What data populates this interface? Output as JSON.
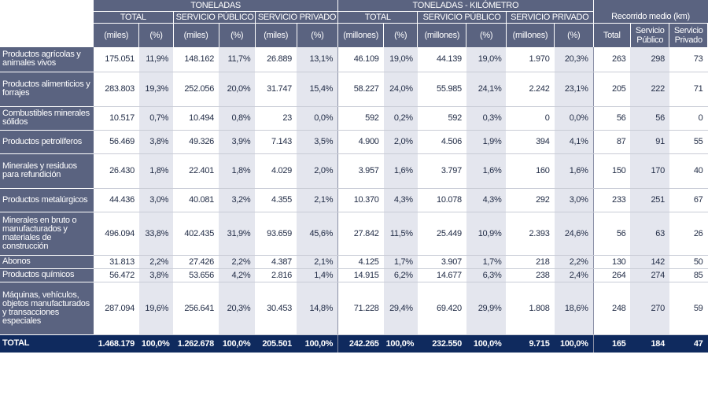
{
  "header": {
    "group_toneladas": "TONELADAS",
    "group_tkm": "TONELADAS - KILÓMETRO",
    "group_recorrido": "Recorrido medio (km)",
    "sub_total": "TOTAL",
    "sub_publico": "SERVICIO PÚBLICO",
    "sub_privado": "SERVICIO PRIVADO",
    "unit_miles": "(miles)",
    "unit_pct": "(%)",
    "unit_millones": "(millones)",
    "rec_total": "Total",
    "rec_publico_1": "Servicio",
    "rec_publico_2": "Público",
    "rec_privado_1": "Servicio",
    "rec_privado_2": "Privado"
  },
  "rows": [
    {
      "label": "Productos agrícolas y animales vivos",
      "t_miles": "175.051",
      "t_pct": "11,9%",
      "sp_miles": "148.162",
      "sp_pct": "11,7%",
      "spr_miles": "26.889",
      "spr_pct": "13,1%",
      "k_tot": "46.109",
      "k_tot_pct": "19,0%",
      "k_sp": "44.139",
      "k_sp_pct": "19,0%",
      "k_spr": "1.970",
      "k_spr_pct": "20,3%",
      "r_tot": "263",
      "r_sp": "298",
      "r_spr": "73"
    },
    {
      "label": "Productos alimenticios y forrajes",
      "t_miles": "283.803",
      "t_pct": "19,3%",
      "sp_miles": "252.056",
      "sp_pct": "20,0%",
      "spr_miles": "31.747",
      "spr_pct": "15,4%",
      "k_tot": "58.227",
      "k_tot_pct": "24,0%",
      "k_sp": "55.985",
      "k_sp_pct": "24,1%",
      "k_spr": "2.242",
      "k_spr_pct": "23,1%",
      "r_tot": "205",
      "r_sp": "222",
      "r_spr": "71"
    },
    {
      "label": "Combustibles minerales sólidos",
      "t_miles": "10.517",
      "t_pct": "0,7%",
      "sp_miles": "10.494",
      "sp_pct": "0,8%",
      "spr_miles": "23",
      "spr_pct": "0,0%",
      "k_tot": "592",
      "k_tot_pct": "0,2%",
      "k_sp": "592",
      "k_sp_pct": "0,3%",
      "k_spr": "0",
      "k_spr_pct": "0,0%",
      "r_tot": "56",
      "r_sp": "56",
      "r_spr": "0"
    },
    {
      "label": "Productos petrolíferos",
      "t_miles": "56.469",
      "t_pct": "3,8%",
      "sp_miles": "49.326",
      "sp_pct": "3,9%",
      "spr_miles": "7.143",
      "spr_pct": "3,5%",
      "k_tot": "4.900",
      "k_tot_pct": "2,0%",
      "k_sp": "4.506",
      "k_sp_pct": "1,9%",
      "k_spr": "394",
      "k_spr_pct": "4,1%",
      "r_tot": "87",
      "r_sp": "91",
      "r_spr": "55"
    },
    {
      "label": "Minerales y residuos para refundición",
      "t_miles": "26.430",
      "t_pct": "1,8%",
      "sp_miles": "22.401",
      "sp_pct": "1,8%",
      "spr_miles": "4.029",
      "spr_pct": "2,0%",
      "k_tot": "3.957",
      "k_tot_pct": "1,6%",
      "k_sp": "3.797",
      "k_sp_pct": "1,6%",
      "k_spr": "160",
      "k_spr_pct": "1,6%",
      "r_tot": "150",
      "r_sp": "170",
      "r_spr": "40"
    },
    {
      "label": "Productos metalúrgicos",
      "t_miles": "44.436",
      "t_pct": "3,0%",
      "sp_miles": "40.081",
      "sp_pct": "3,2%",
      "spr_miles": "4.355",
      "spr_pct": "2,1%",
      "k_tot": "10.370",
      "k_tot_pct": "4,3%",
      "k_sp": "10.078",
      "k_sp_pct": "4,3%",
      "k_spr": "292",
      "k_spr_pct": "3,0%",
      "r_tot": "233",
      "r_sp": "251",
      "r_spr": "67"
    },
    {
      "label": "Minerales en bruto o manufacturados y materiales de construcción",
      "t_miles": "496.094",
      "t_pct": "33,8%",
      "sp_miles": "402.435",
      "sp_pct": "31,9%",
      "spr_miles": "93.659",
      "spr_pct": "45,6%",
      "k_tot": "27.842",
      "k_tot_pct": "11,5%",
      "k_sp": "25.449",
      "k_sp_pct": "10,9%",
      "k_spr": "2.393",
      "k_spr_pct": "24,6%",
      "r_tot": "56",
      "r_sp": "63",
      "r_spr": "26"
    },
    {
      "label": "Abonos",
      "t_miles": "31.813",
      "t_pct": "2,2%",
      "sp_miles": "27.426",
      "sp_pct": "2,2%",
      "spr_miles": "4.387",
      "spr_pct": "2,1%",
      "k_tot": "4.125",
      "k_tot_pct": "1,7%",
      "k_sp": "3.907",
      "k_sp_pct": "1,7%",
      "k_spr": "218",
      "k_spr_pct": "2,2%",
      "r_tot": "130",
      "r_sp": "142",
      "r_spr": "50"
    },
    {
      "label": "Productos químicos",
      "t_miles": "56.472",
      "t_pct": "3,8%",
      "sp_miles": "53.656",
      "sp_pct": "4,2%",
      "spr_miles": "2.816",
      "spr_pct": "1,4%",
      "k_tot": "14.915",
      "k_tot_pct": "6,2%",
      "k_sp": "14.677",
      "k_sp_pct": "6,3%",
      "k_spr": "238",
      "k_spr_pct": "2,4%",
      "r_tot": "264",
      "r_sp": "274",
      "r_spr": "85"
    },
    {
      "label": "Máquinas, vehículos, objetos manufacturados y transacciones especiales",
      "t_miles": "287.094",
      "t_pct": "19,6%",
      "sp_miles": "256.641",
      "sp_pct": "20,3%",
      "spr_miles": "30.453",
      "spr_pct": "14,8%",
      "k_tot": "71.228",
      "k_tot_pct": "29,4%",
      "k_sp": "69.420",
      "k_sp_pct": "29,9%",
      "k_spr": "1.808",
      "k_spr_pct": "18,6%",
      "r_tot": "248",
      "r_sp": "270",
      "r_spr": "59"
    }
  ],
  "total": {
    "label": "TOTAL",
    "t_miles": "1.468.179",
    "t_pct": "100,0%",
    "sp_miles": "1.262.678",
    "sp_pct": "100,0%",
    "spr_miles": "205.501",
    "spr_pct": "100,0%",
    "k_tot": "242.265",
    "k_tot_pct": "100,0%",
    "k_sp": "232.550",
    "k_sp_pct": "100,0%",
    "k_spr": "9.715",
    "k_spr_pct": "100,0%",
    "r_tot": "165",
    "r_sp": "184",
    "r_spr": "47"
  },
  "colors": {
    "header_bg": "#5a6380",
    "total_bg": "#0f2a5e",
    "stripe": "#e4e6ee"
  }
}
